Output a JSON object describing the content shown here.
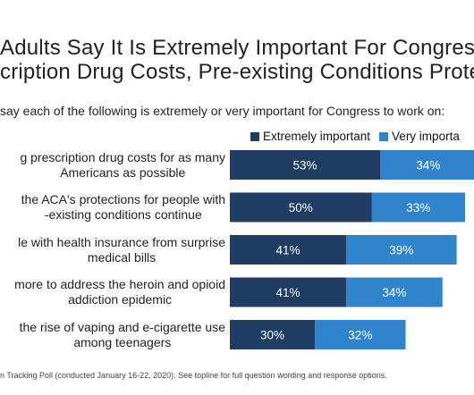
{
  "title_line1": "Adults Say It Is Extremely Important For Congress",
  "title_line2": "cription Drug Costs, Pre-existing Conditions Prote",
  "subtitle": "say each of the following is extremely or very important for Congress to work on:",
  "footer": "n Tracking Poll (conducted January 16-22, 2020). See topline for full question wording and response options.",
  "colors": {
    "extremely": "#1f3d63",
    "very": "#2f84cc"
  },
  "chart_data": {
    "type": "bar",
    "orientation": "horizontal",
    "stacked": true,
    "categories": [
      [
        "g prescription drug costs for as many",
        "Americans as possible"
      ],
      [
        "the ACA's protections for people with",
        "-existing conditions continue"
      ],
      [
        "le with health insurance from surprise",
        "medical bills"
      ],
      [
        "more to address the heroin and opioid",
        "addiction epidemic"
      ],
      [
        "the rise of vaping and e-cigarette use",
        "among teenagers"
      ]
    ],
    "series": [
      {
        "name": "Extremely important",
        "values": [
          53,
          50,
          41,
          41,
          30
        ],
        "labels": [
          "53%",
          "50%",
          "41%",
          "41%",
          "30%"
        ]
      },
      {
        "name": "Very importa",
        "values": [
          34,
          33,
          39,
          34,
          32
        ],
        "labels": [
          "34%",
          "33%",
          "39%",
          "34%",
          "32%"
        ]
      }
    ],
    "legend_position": "top"
  }
}
